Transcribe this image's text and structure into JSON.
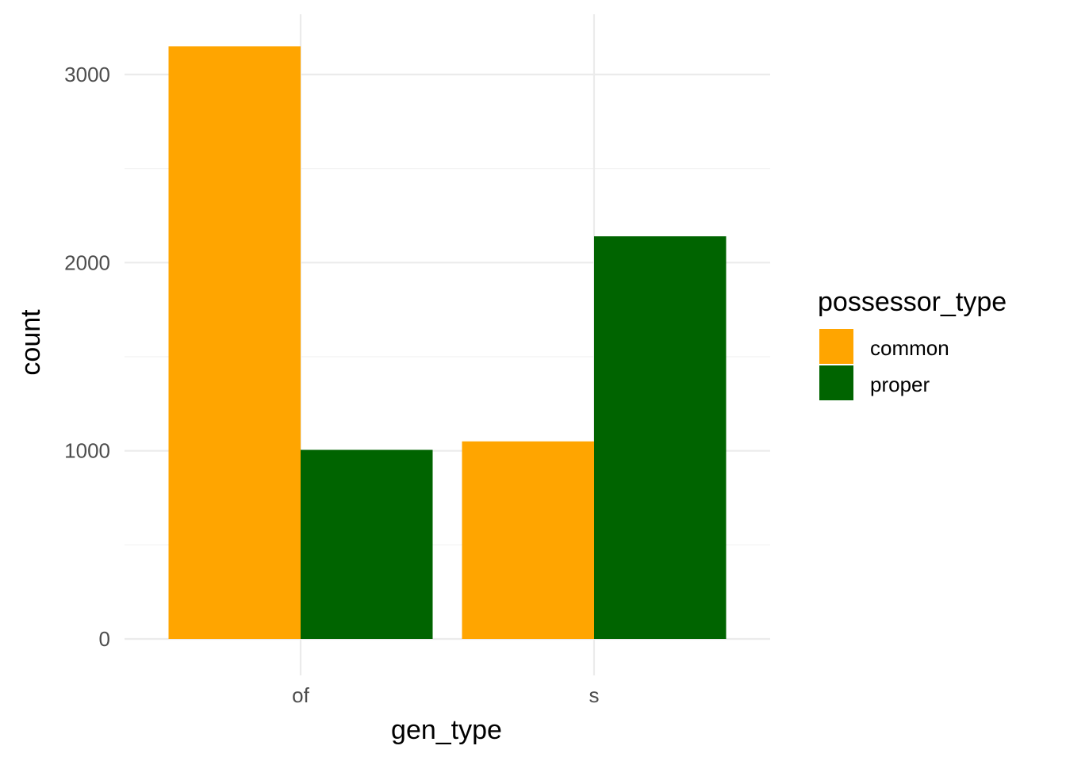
{
  "chart_data": {
    "type": "bar",
    "categories": [
      "of",
      "s"
    ],
    "series": [
      {
        "name": "common",
        "color": "#FFA500",
        "values": [
          3150,
          1050
        ]
      },
      {
        "name": "proper",
        "color": "#006400",
        "values": [
          1005,
          2140
        ]
      }
    ],
    "xlabel": "gen_type",
    "ylabel": "count",
    "ylim": [
      0,
      3310
    ],
    "yticks": [
      0,
      1000,
      2000,
      3000
    ],
    "yminor": [
      500,
      1500,
      2500
    ],
    "legend_title": "possessor_type",
    "legend_position": "right",
    "grid": true,
    "grid_color": "#ebebeb"
  }
}
